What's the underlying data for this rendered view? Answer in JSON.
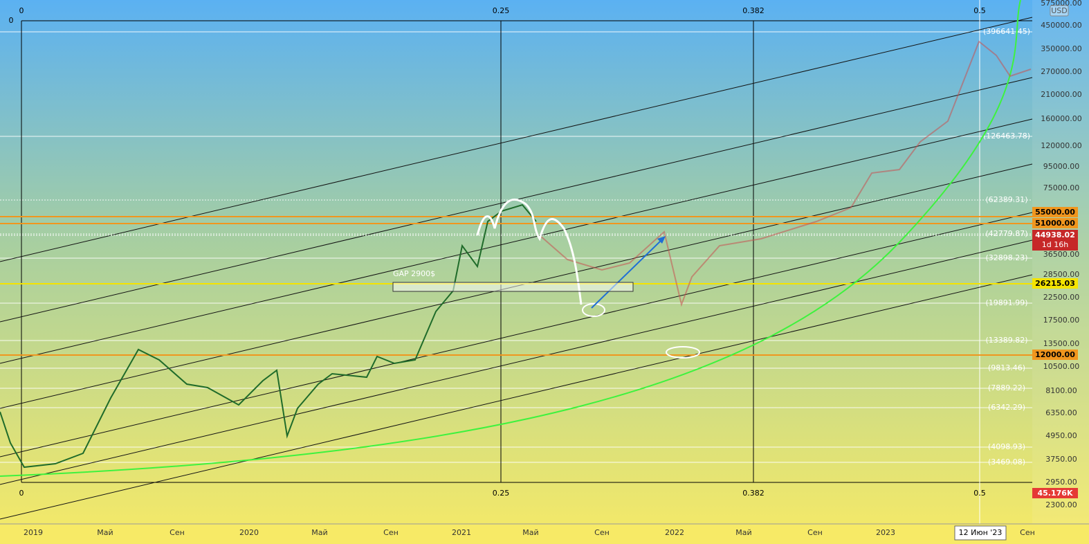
{
  "currency": "USD",
  "price_axis": [
    "575000.00",
    "450000.00",
    "350000.00",
    "270000.00",
    "210000.00",
    "160000.00",
    "120000.00",
    "95000.00",
    "75000.00",
    "36500.00",
    "28500.00",
    "22500.00",
    "17500.00",
    "13500.00",
    "10500.00",
    "8100.00",
    "6350.00",
    "4950.00",
    "3750.00",
    "2950.00",
    "2300.00"
  ],
  "price_tags": [
    {
      "text": "55000.00"
    },
    {
      "text": "51000.00"
    },
    {
      "text": "44938.02",
      "sub": "1d 16h"
    },
    {
      "text": "26215.03"
    },
    {
      "text": "12000.00"
    },
    {
      "text": "45.176K"
    }
  ],
  "fib_levels": [
    "(396641.45)",
    "(126463.78)",
    "(62389.31)",
    "(42779.87)",
    "(32898.23)",
    "(19891.99)",
    "(13389.82)",
    "(9813.46)",
    "(7889.22)",
    "(6342.29)",
    "(4098.93)",
    "(3469.08)"
  ],
  "fib_time": [
    "0",
    "0.25",
    "0.382",
    "0.5"
  ],
  "fib_corner": "0",
  "time_axis": [
    "2019",
    "Май",
    "Сен",
    "2020",
    "Май",
    "Сен",
    "2021",
    "Май",
    "Сен",
    "2022",
    "Май",
    "Сен",
    "2023",
    "Сен"
  ],
  "cursor_date": "12 Июн '23",
  "annotation": "GAP 2900$"
}
